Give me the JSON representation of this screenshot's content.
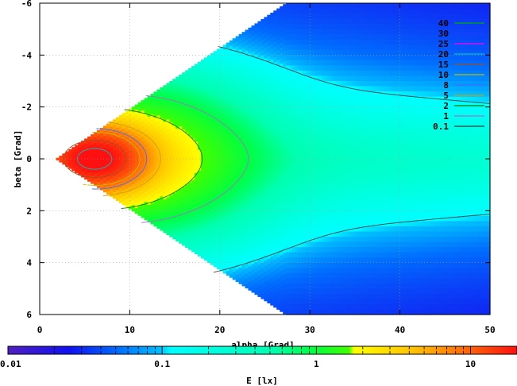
{
  "chart_data": {
    "type": "heatmap",
    "xlabel": "alpha [Grad]",
    "ylabel": "beta [Grad]",
    "xlim": [
      0,
      50
    ],
    "ylim": [
      -6,
      6
    ],
    "y_inverted": true,
    "x_ticks": [
      0,
      10,
      20,
      30,
      40,
      50
    ],
    "y_ticks": [
      -6,
      -4,
      -2,
      0,
      2,
      4,
      6
    ],
    "x_tick_labels": [
      "0",
      "10",
      "20",
      "30",
      "40",
      "50"
    ],
    "y_tick_labels": [
      "-6",
      "-4",
      "-2",
      "0",
      "2",
      "4",
      "6"
    ],
    "grid": true,
    "contour_levels": [
      {
        "label": "40",
        "value": 40,
        "color": "#00b000"
      },
      {
        "label": "30",
        "value": 30,
        "color": "#2040ff"
      },
      {
        "label": "25",
        "value": 25,
        "color": "#ff00ff"
      },
      {
        "label": "20",
        "value": 20,
        "color": "#00c0c0"
      },
      {
        "label": "15",
        "value": 15,
        "color": "#a05020"
      },
      {
        "label": "10",
        "value": 10,
        "color": "#c0c000"
      },
      {
        "label": "8",
        "value": 8,
        "color": "#4070ff"
      },
      {
        "label": "5",
        "value": 5,
        "color": "#d0a000"
      },
      {
        "label": "2",
        "value": 2,
        "color": "#008000"
      },
      {
        "label": "1",
        "value": 1,
        "color": "#a070d0"
      },
      {
        "label": "0.1",
        "value": 0.1,
        "color": "#404040"
      }
    ],
    "peak": {
      "alpha": 6,
      "beta": 0,
      "value": 20
    },
    "colorbar": {
      "label": "E [lx]",
      "scale": "log",
      "range": [
        0.01,
        20
      ],
      "tick_labels": [
        "0.01",
        "0.1",
        "1",
        "10"
      ],
      "tick_values": [
        0.01,
        0.1,
        1,
        10
      ]
    }
  }
}
